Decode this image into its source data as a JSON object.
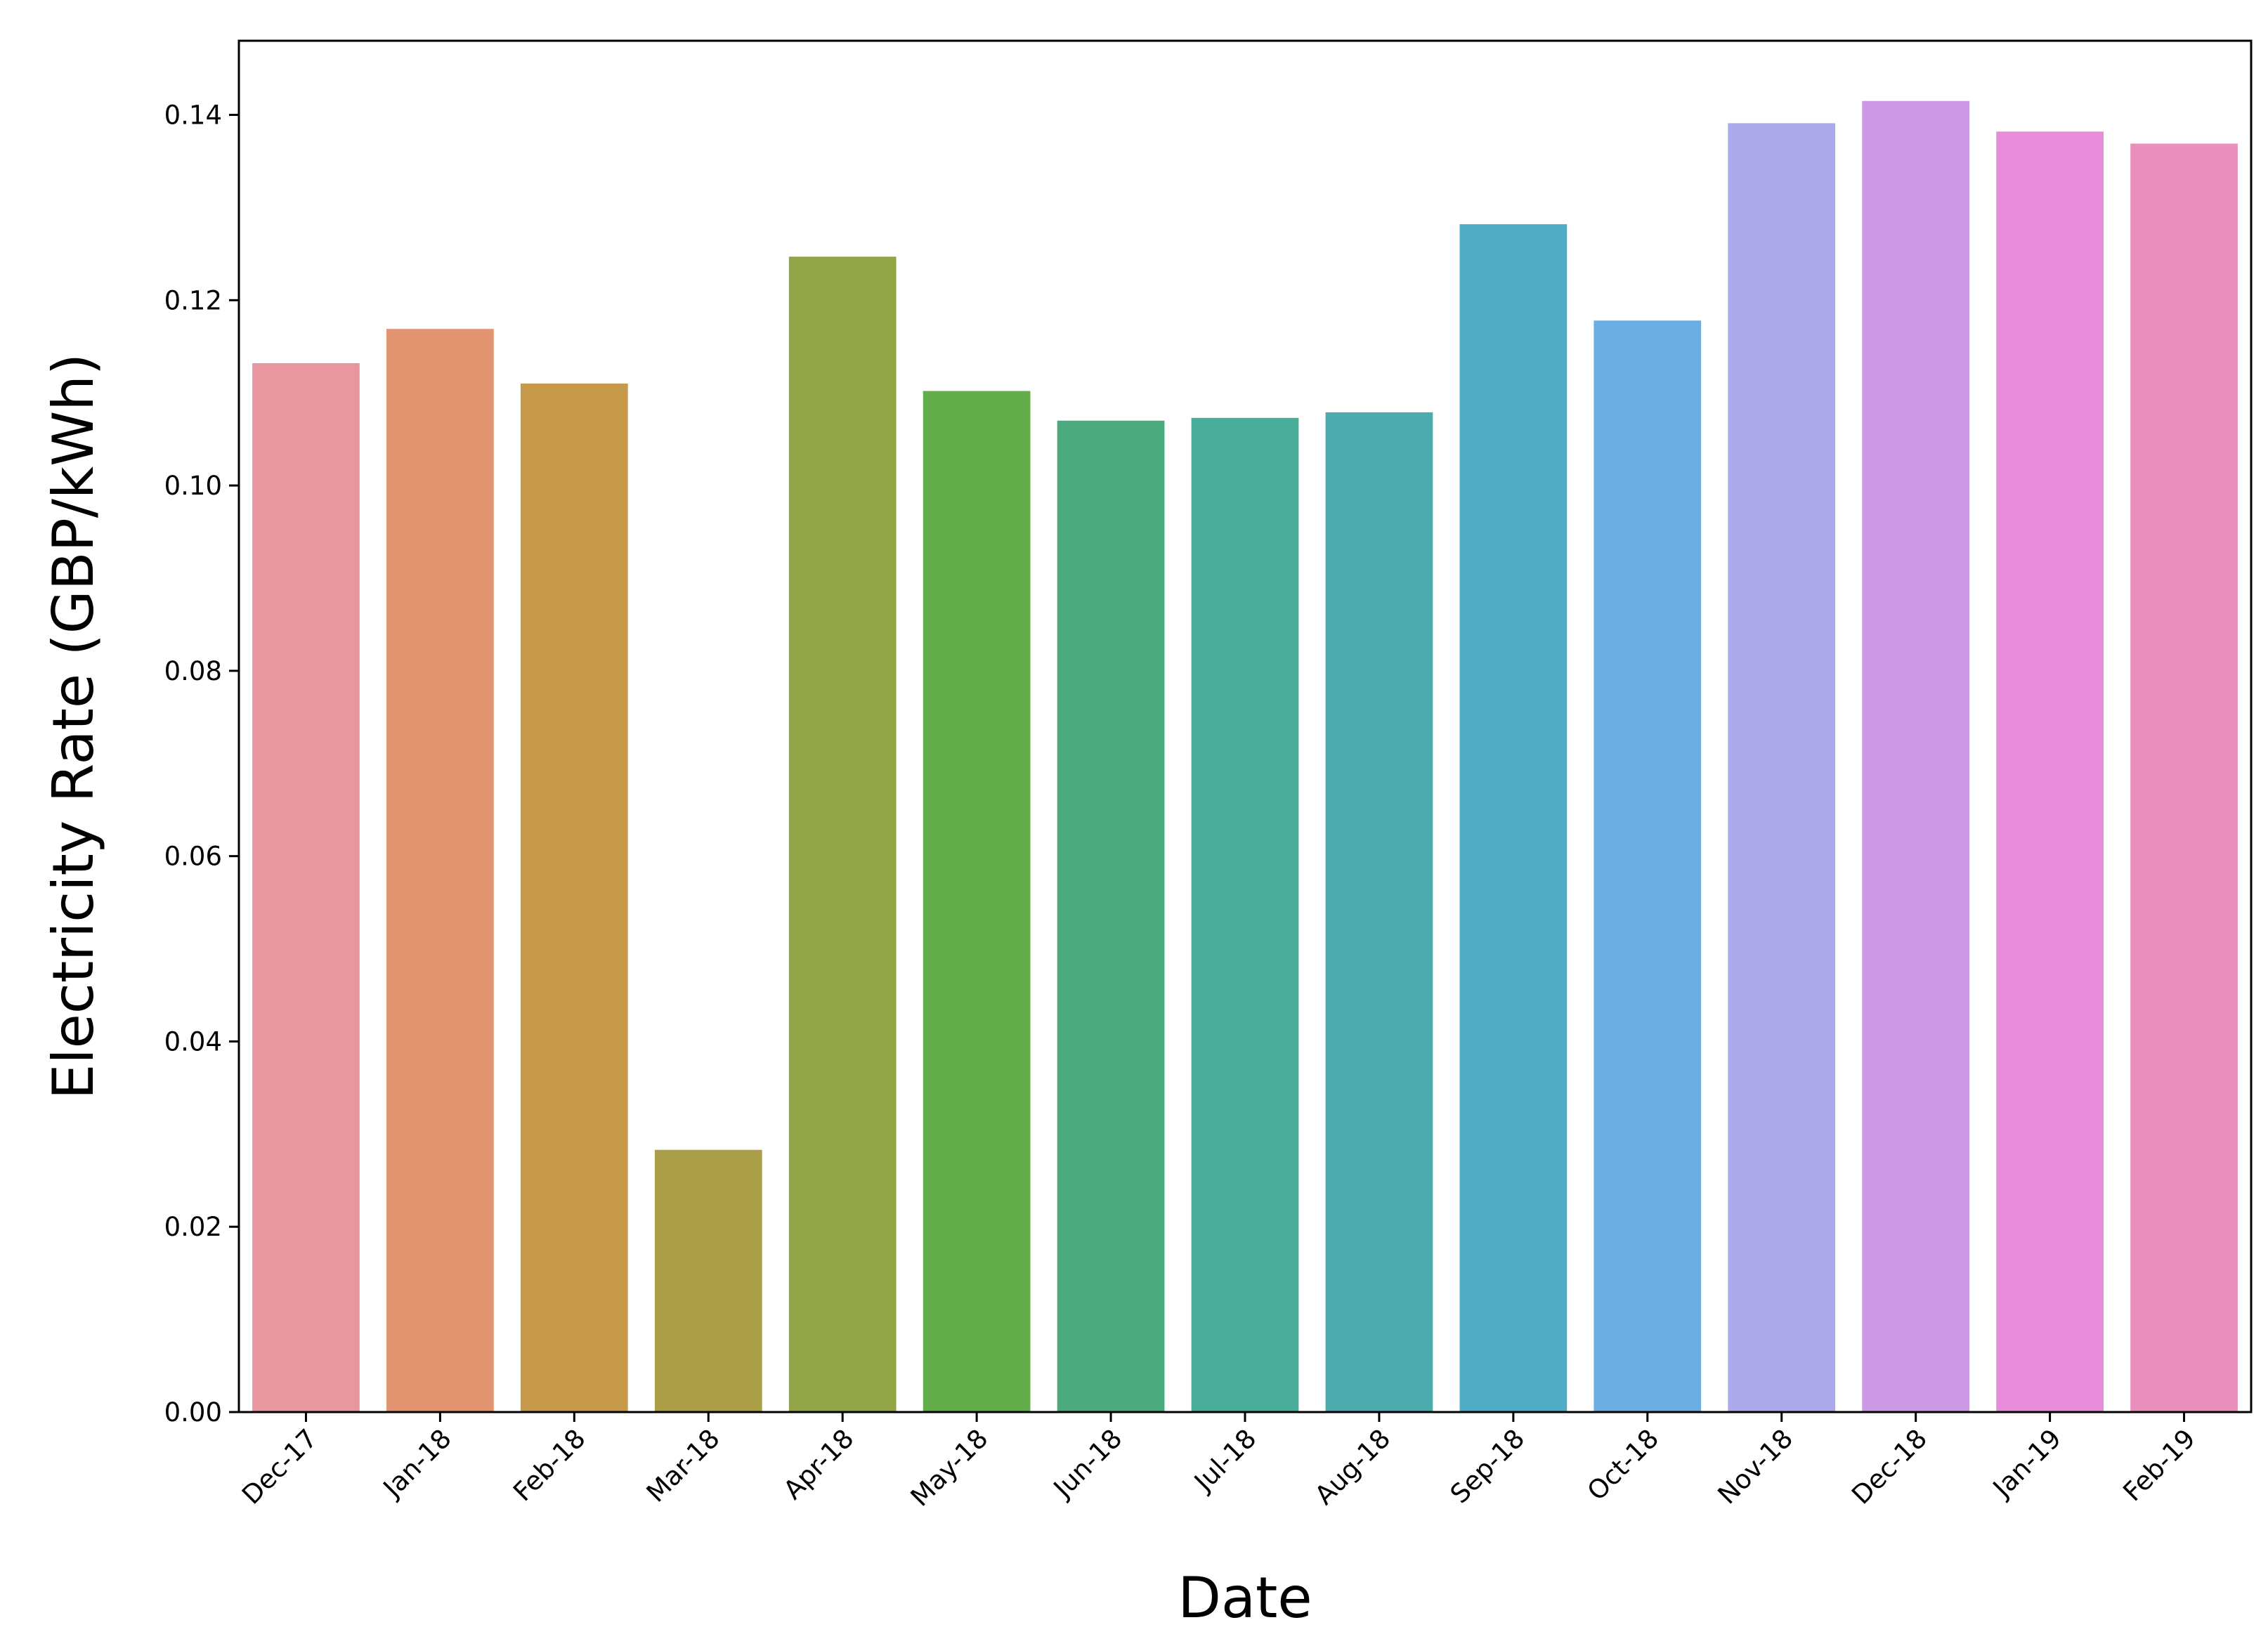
{
  "chart_data": {
    "type": "bar",
    "title": "",
    "xlabel": "Date",
    "ylabel": "Electricity Rate (GBP/kWh)",
    "ylim": [
      0,
      0.148
    ],
    "yticks": [
      "0.00",
      "0.02",
      "0.04",
      "0.06",
      "0.08",
      "0.10",
      "0.12",
      "0.14"
    ],
    "grid": false,
    "categories": [
      "Dec-17",
      "Jan-18",
      "Feb-18",
      "Mar-18",
      "Apr-18",
      "May-18",
      "Jun-18",
      "Jul-18",
      "Aug-18",
      "Sep-18",
      "Oct-18",
      "Nov-18",
      "Dec-18",
      "Jan-19",
      "Feb-19"
    ],
    "values": [
      0.1132,
      0.1169,
      0.111,
      0.0283,
      0.1247,
      0.1102,
      0.107,
      0.1073,
      0.1079,
      0.1282,
      0.1178,
      0.1391,
      0.1415,
      0.1382,
      0.1369
    ],
    "colors": [
      "#e8969f",
      "#e39470",
      "#c69a4a",
      "#aa9e48",
      "#92a546",
      "#62ae4a",
      "#4bab7e",
      "#4aad9a",
      "#4dabae",
      "#4facc4",
      "#6caee2",
      "#aca9eb",
      "#cc99e5",
      "#e68cd8",
      "#e88fbc"
    ]
  }
}
